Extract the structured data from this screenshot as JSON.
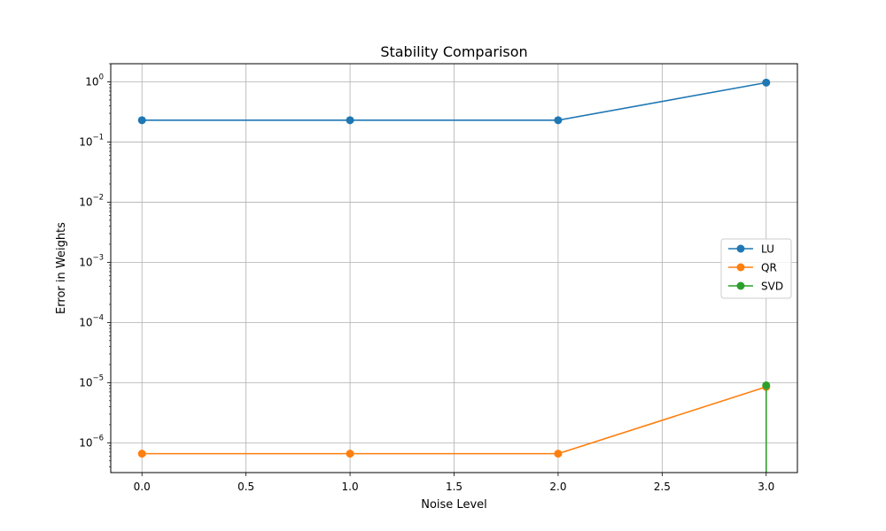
{
  "chart_data": {
    "type": "line",
    "title": "Stability Comparison",
    "xlabel": "Noise Level",
    "ylabel": "Error in Weights",
    "yscale": "log",
    "xlim": [
      -0.15,
      3.15
    ],
    "ylim": [
      3.2e-07,
      2.0
    ],
    "x_ticks": [
      {
        "value": 0.0,
        "label": "0.0"
      },
      {
        "value": 0.5,
        "label": "0.5"
      },
      {
        "value": 1.0,
        "label": "1.0"
      },
      {
        "value": 1.5,
        "label": "1.5"
      },
      {
        "value": 2.0,
        "label": "2.0"
      },
      {
        "value": 2.5,
        "label": "2.5"
      },
      {
        "value": 3.0,
        "label": "3.0"
      }
    ],
    "y_ticks": [
      {
        "value": 1e-06,
        "base": "10",
        "exp": "−6"
      },
      {
        "value": 1e-05,
        "base": "10",
        "exp": "−5"
      },
      {
        "value": 0.0001,
        "base": "10",
        "exp": "−4"
      },
      {
        "value": 0.001,
        "base": "10",
        "exp": "−3"
      },
      {
        "value": 0.01,
        "base": "10",
        "exp": "−2"
      },
      {
        "value": 0.1,
        "base": "10",
        "exp": "−1"
      },
      {
        "value": 1,
        "base": "10",
        "exp": "0"
      }
    ],
    "grid": true,
    "legend_position": "center-right",
    "x": [
      0,
      1,
      2,
      3
    ],
    "series": [
      {
        "name": "LU",
        "color": "#1f77b4",
        "values": [
          0.23,
          0.23,
          0.23,
          0.97
        ]
      },
      {
        "name": "QR",
        "color": "#ff7f0e",
        "values": [
          6.6e-07,
          6.6e-07,
          6.6e-07,
          8.5e-06
        ]
      },
      {
        "name": "SVD",
        "color": "#2ca02c",
        "values": [
          null,
          null,
          null,
          9e-06
        ],
        "drop_to_zero_before_last": true
      }
    ]
  }
}
